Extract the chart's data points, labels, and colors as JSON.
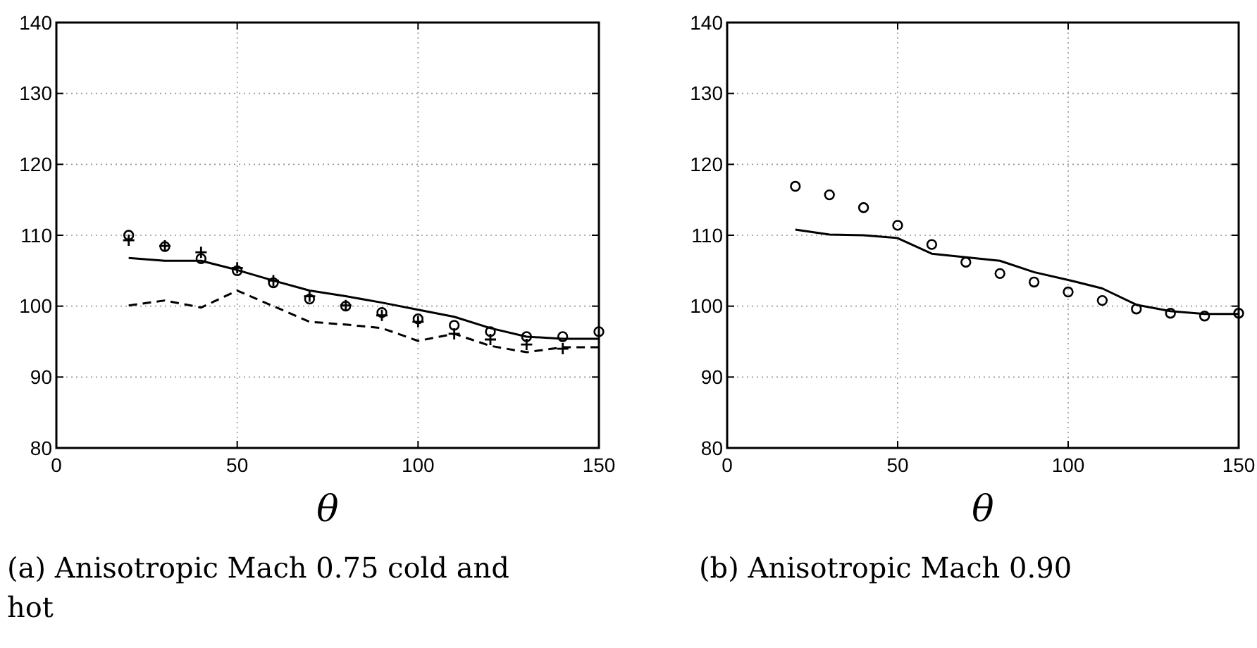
{
  "chart_data": [
    {
      "type": "line",
      "title": "(a) Anisotropic Mach 0.75 cold and hot",
      "xlabel": "θ",
      "x": [
        20,
        30,
        40,
        50,
        60,
        70,
        80,
        90,
        100,
        110,
        120,
        130,
        140,
        150
      ],
      "xlim": [
        0,
        150
      ],
      "xticks": [
        0,
        50,
        100,
        150
      ],
      "ylim": [
        80,
        140
      ],
      "yticks": [
        80,
        90,
        100,
        110,
        120,
        130,
        140
      ],
      "grid": true,
      "series": [
        {
          "type": "scatter",
          "marker": "circle",
          "color": "#000000",
          "values": [
            110,
            108.4,
            106.7,
            105,
            103.3,
            101,
            100,
            99.1,
            98.2,
            97.3,
            96.4,
            95.7,
            95.7,
            96.4
          ]
        },
        {
          "type": "scatter",
          "marker": "cross",
          "color": "#000000",
          "values": [
            109.3,
            108.5,
            107.6,
            105.4,
            103.6,
            101.4,
            100.1,
            98.7,
            97.8,
            96.1,
            95.3,
            94.6,
            94,
            null
          ]
        },
        {
          "line_style": "solid",
          "color": "#000000",
          "values": [
            106.8,
            106.4,
            106.4,
            105.1,
            103.6,
            102.2,
            101.4,
            100.5,
            99.5,
            98.5,
            96.9,
            95.7,
            95.4,
            95.4
          ]
        },
        {
          "line_style": "dashed",
          "color": "#000000",
          "values": [
            100.1,
            100.8,
            99.8,
            102.2,
            100,
            97.8,
            97.4,
            96.9,
            95.1,
            96.1,
            94.4,
            93.5,
            94.2,
            94.2
          ]
        }
      ]
    },
    {
      "type": "line",
      "title": "(b) Anisotropic Mach 0.90",
      "xlabel": "θ",
      "x": [
        20,
        30,
        40,
        50,
        60,
        70,
        80,
        90,
        100,
        110,
        120,
        130,
        140,
        150
      ],
      "xlim": [
        0,
        150
      ],
      "xticks": [
        0,
        50,
        100,
        150
      ],
      "ylim": [
        80,
        140
      ],
      "yticks": [
        80,
        90,
        100,
        110,
        120,
        130,
        140
      ],
      "grid": true,
      "series": [
        {
          "type": "scatter",
          "marker": "circle",
          "color": "#000000",
          "values": [
            116.9,
            115.7,
            113.9,
            111.4,
            108.7,
            106.2,
            104.6,
            103.4,
            102,
            100.8,
            99.6,
            99,
            98.6,
            99
          ]
        },
        {
          "line_style": "solid",
          "color": "#000000",
          "values": [
            110.8,
            110.1,
            110,
            109.6,
            107.4,
            106.9,
            106.4,
            104.8,
            103.7,
            102.5,
            100.2,
            99.3,
            98.9,
            98.9
          ]
        }
      ]
    }
  ]
}
